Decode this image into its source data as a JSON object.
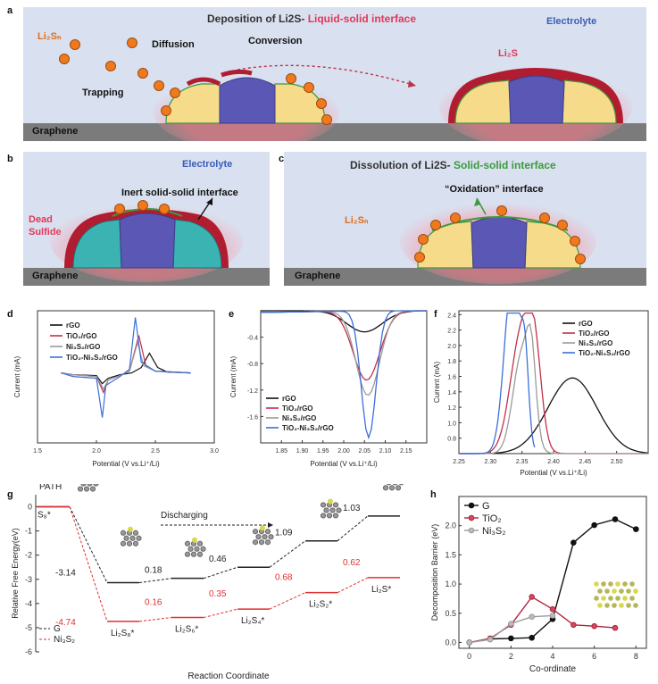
{
  "labels": {
    "a": "a",
    "b": "b",
    "c": "c",
    "d": "d",
    "e": "e",
    "f": "f",
    "g": "g",
    "h": "h"
  },
  "panel_a": {
    "title_main": "Deposition of Li2S-",
    "title_sub": "Liquid-solid interface",
    "electrolyte": "Electrolyte",
    "lisn": "Li₂Sₙ",
    "diffusion": "Diffusion",
    "conversion": "Conversion",
    "trapping": "Trapping",
    "li2s": "Li₂S",
    "graphene": "Graphene"
  },
  "panel_b": {
    "electrolyte": "Electrolyte",
    "inert": "Inert solid-solid interface",
    "dead": "Dead",
    "sulfide": "Sulfide",
    "graphene": "Graphene"
  },
  "panel_c": {
    "title_main": "Dissolution of Li2S-",
    "title_sub": "Solid-solid interface",
    "oxidation": "“Oxidation” interface",
    "lisn": "Li₂Sₙ",
    "graphene": "Graphene"
  },
  "colors": {
    "rGO": "#111111",
    "TiO2": "#c0304a",
    "Ni3S2": "#9a9a9a",
    "TiO2Ni3S2": "#3a6fd8"
  },
  "chart_data": [
    {
      "id": "d",
      "type": "line",
      "xlabel": "Potential (V vs.Li⁺/Li)",
      "ylabel": "Current (mA)",
      "xticks": [
        "1.5",
        "2.0",
        "2.5",
        "3.0"
      ],
      "xlim": [
        1.5,
        3.0
      ],
      "legend": [
        "rGO",
        "TiO₂/rGO",
        "Ni₃S₂/rGO",
        "TiO₂-Ni₃S₂/rGO"
      ]
    },
    {
      "id": "e",
      "type": "line",
      "xlabel": "Potential (V vs.Li⁺/Li)",
      "ylabel": "Current (mA)",
      "xlim": [
        1.8,
        2.2
      ],
      "ylim": [
        -2.0,
        0.0
      ],
      "xticks": [
        "1.85",
        "1.90",
        "1.95",
        "2.00",
        "2.05",
        "2.10",
        "2.15"
      ],
      "yticks": [
        "-0.4",
        "-0.8",
        "-1.2",
        "-1.6"
      ],
      "legend": [
        "rGO",
        "TiO₂/rGO",
        "Ni₃S₂/rGO",
        "TiO₂-Ni₃S₂/rGO"
      ]
    },
    {
      "id": "f",
      "type": "line",
      "xlabel": "Potential (V vs.Li⁺/Li)",
      "ylabel": "Current (mA)",
      "xlim": [
        2.25,
        2.55
      ],
      "ylim": [
        0.6,
        2.45
      ],
      "xticks": [
        "2.25",
        "2.30",
        "2.35",
        "2.40",
        "2.45",
        "2.50"
      ],
      "yticks": [
        "0.8",
        "1.0",
        "1.2",
        "1.4",
        "1.6",
        "1.8",
        "2.0",
        "2.2",
        "2.4"
      ],
      "legend": [
        "rGO",
        "TiO₂/rGO",
        "Ni₃S₂/rGO",
        "TiO₂-Ni₃S₂/rGO"
      ]
    },
    {
      "id": "g",
      "type": "line",
      "xlabel": "Reaction Coordinate",
      "ylabel": "Relative Free Energy(eV)",
      "ylim": [
        -6,
        0.5
      ],
      "yticks": [
        "0",
        "-1",
        "-2",
        "-3",
        "-4",
        "-5",
        "-6"
      ],
      "path_label": "PATH",
      "discharging": "Discharging",
      "states": [
        "S₈*",
        "Li₂S₈*",
        "Li₂S₆*",
        "Li₂S₄*",
        "Li₂S₂*",
        "Li₂S*"
      ],
      "series": [
        {
          "name": "G",
          "energies": [
            0,
            -3.14,
            -2.96,
            -2.5,
            -1.41,
            -0.38
          ],
          "labels": [
            "-3.14",
            "0.18",
            "0.46",
            "1.09",
            "1.03"
          ]
        },
        {
          "name": "Ni₃S₂",
          "energies": [
            0,
            -4.74,
            -4.58,
            -4.23,
            -3.55,
            -2.93
          ],
          "labels": [
            "-4.74",
            "0.16",
            "0.35",
            "0.68",
            "0.62"
          ]
        }
      ]
    },
    {
      "id": "h",
      "type": "line",
      "xlabel": "Co-ordinate",
      "ylabel": "Decomposition Barrier (eV)",
      "xlim": [
        -0.5,
        8.5
      ],
      "ylim": [
        -0.1,
        2.5
      ],
      "xticks": [
        "0",
        "2",
        "4",
        "6",
        "8"
      ],
      "yticks": [
        "0.0",
        "0.5",
        "1.0",
        "1.5",
        "2.0"
      ],
      "series": [
        {
          "name": "G",
          "x": [
            0,
            1,
            2,
            3,
            4,
            5,
            6,
            7,
            8
          ],
          "y": [
            0,
            0.06,
            0.07,
            0.08,
            0.4,
            1.71,
            2.01,
            2.11,
            1.94
          ]
        },
        {
          "name": "TiO₂",
          "x": [
            0,
            1,
            2,
            3,
            4,
            5,
            6,
            7
          ],
          "y": [
            0,
            0.07,
            0.3,
            0.78,
            0.57,
            0.3,
            0.28,
            0.25
          ]
        },
        {
          "name": "Ni₃S₂",
          "x": [
            0,
            1,
            2,
            3,
            4
          ],
          "y": [
            0,
            0.05,
            0.32,
            0.44,
            0.46
          ]
        }
      ]
    }
  ]
}
